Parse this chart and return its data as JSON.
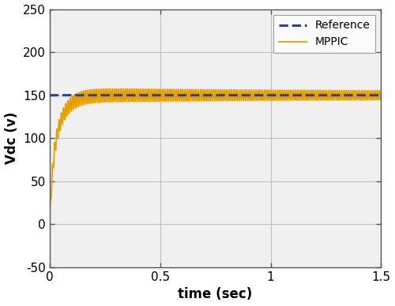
{
  "title": "",
  "xlabel": "time (sec)",
  "ylabel": "Vdc (v)",
  "xlim": [
    0,
    1.5
  ],
  "ylim": [
    -50,
    250
  ],
  "yticks": [
    -50,
    0,
    50,
    100,
    150,
    200,
    250
  ],
  "xticks": [
    0,
    0.5,
    1.0,
    1.5
  ],
  "reference_value": 150,
  "reference_color": "#2040C0",
  "mppic_color": "#E8A000",
  "rise_tau": 0.032,
  "settle_value": 150,
  "ripple_amplitude_ss": 4.5,
  "ripple_frequency": 100,
  "legend_labels": [
    "Reference",
    "MPPIC"
  ],
  "grid_color": "#c0c0c0",
  "background_color": "#ffffff",
  "figure_facecolor": "#ffffff",
  "axes_facecolor": "#f0f0f0",
  "spine_color": "#555555"
}
